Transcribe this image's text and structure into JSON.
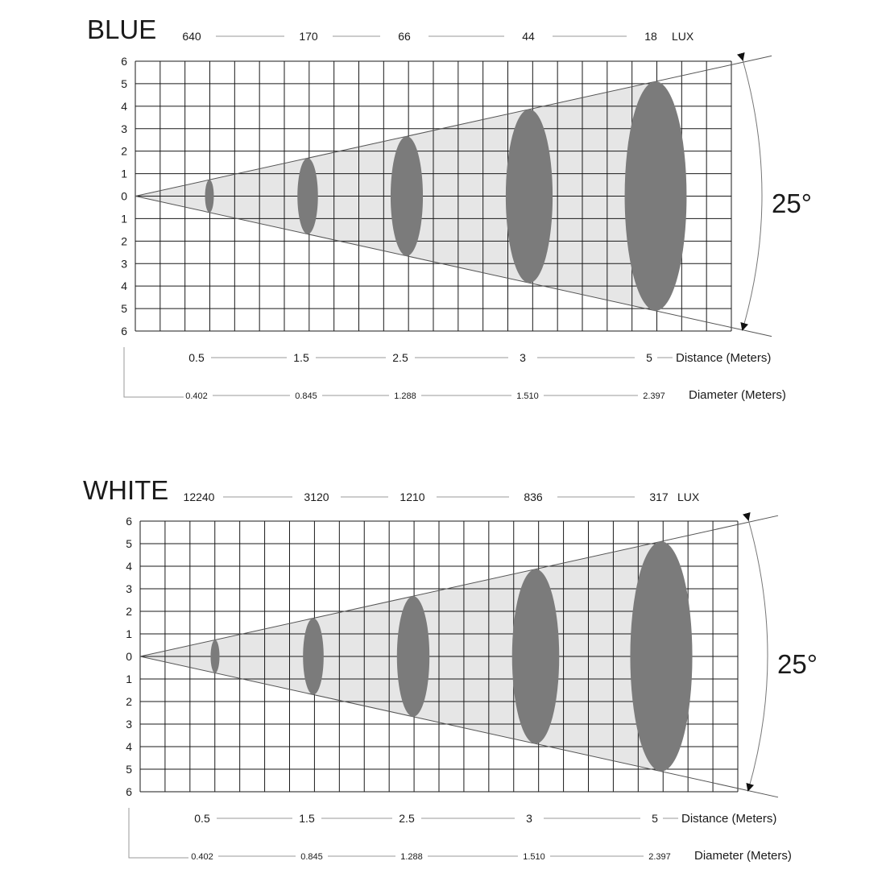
{
  "panels": [
    {
      "name": "blue",
      "title": "BLUE",
      "lux_values": [
        "640",
        "170",
        "66",
        "44",
        "18"
      ],
      "lux_unit": "LUX",
      "y_ticks": [
        "6",
        "5",
        "4",
        "3",
        "2",
        "1",
        "0",
        "1",
        "2",
        "3",
        "4",
        "5",
        "6"
      ],
      "distances": [
        "0.5",
        "1.5",
        "2.5",
        "3",
        "5"
      ],
      "distance_label": "Distance (Meters)",
      "diameters": [
        "0.402",
        "0.845",
        "1.288",
        "1.510",
        "2.397"
      ],
      "diameter_label": "Diameter (Meters)",
      "angle_label": "25°"
    },
    {
      "name": "white",
      "title": "WHITE",
      "lux_values": [
        "12240",
        "3120",
        "1210",
        "836",
        "317"
      ],
      "lux_unit": "LUX",
      "y_ticks": [
        "6",
        "5",
        "4",
        "3",
        "2",
        "1",
        "0",
        "1",
        "2",
        "3",
        "4",
        "5",
        "6"
      ],
      "distances": [
        "0.5",
        "1.5",
        "2.5",
        "3",
        "5"
      ],
      "distance_label": "Distance (Meters)",
      "diameters": [
        "0.402",
        "0.845",
        "1.288",
        "1.510",
        "2.397"
      ],
      "diameter_label": "Diameter (Meters)",
      "angle_label": "25°"
    }
  ],
  "colors": {
    "grid": "#1a1a1a",
    "cone": "#e6e6e6",
    "spot": "#7b7b7b",
    "leader": "#9a9a9a"
  }
}
